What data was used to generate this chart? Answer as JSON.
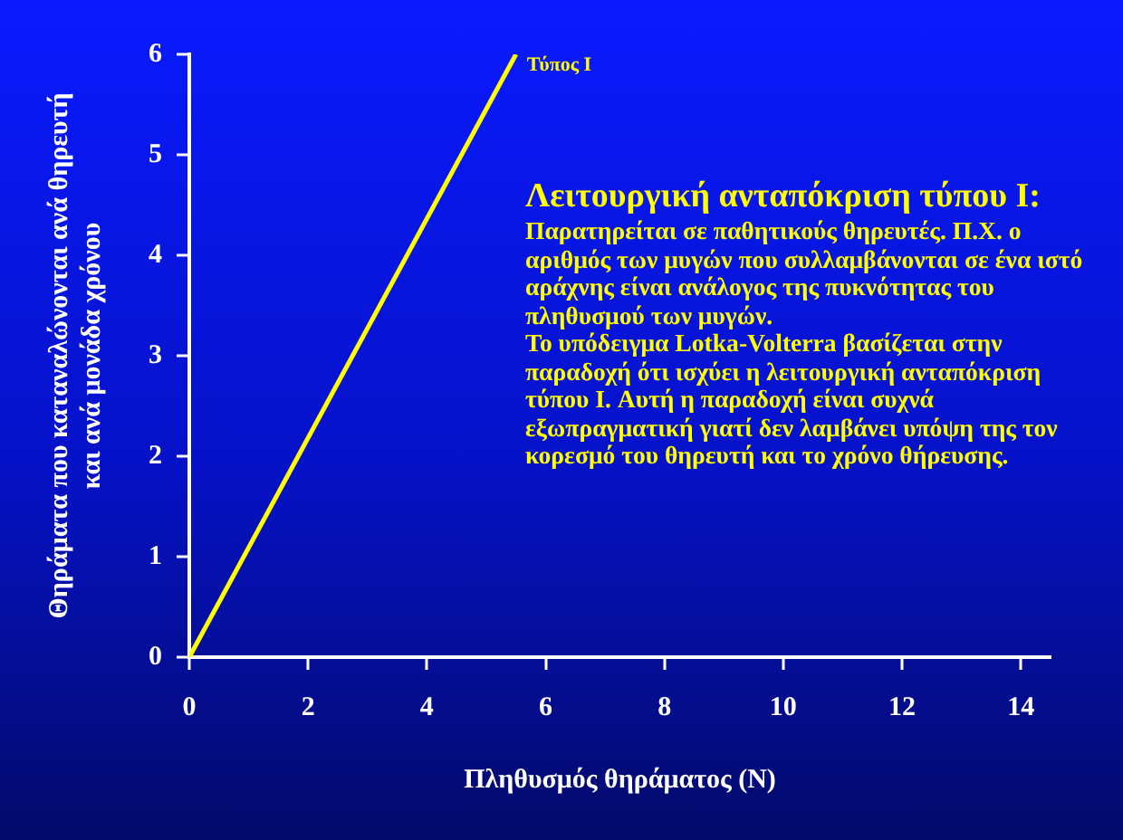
{
  "chart_data": {
    "type": "line",
    "xlabel": "Πληθυσμός θηράματος (N)",
    "ylabel": "Θηράματα που καταναλώνονται ανά θηρευτή\nκαι ανά μονάδα χρόνου",
    "x": [
      0,
      5.5
    ],
    "series": [
      {
        "name": "Τύπος I",
        "color": "#ffff00",
        "values": [
          0,
          6
        ]
      }
    ],
    "xlim": [
      0,
      14.5
    ],
    "xticks": [
      0,
      2,
      4,
      6,
      8,
      10,
      12,
      14
    ],
    "ylim": [
      0,
      6
    ],
    "yticks": [
      0,
      1,
      2,
      3,
      4,
      5,
      6
    ],
    "grid": false,
    "legend": false,
    "marker": "none",
    "line_style": "solid",
    "annotations": [
      "Λειτουργική ανταπόκριση τύπου I:",
      "Παρατηρείται σε παθητικούς θηρευτές. Π.Χ. ο αριθμός των μυγών που συλλαμβάνονται σε ένα ιστό αράχνης είναι ανάλογος της πυκνότητας του πληθυσμού των μυγών.\nΤο υπόδειγμα Lotka-Volterra βασίζεται στην παραδοχή ότι ισχύει η λειτουργική ανταπόκριση τύπου I. Αυτή η παραδοχή είναι συχνά εξωπραγματική γιατί δεν λαμβάνει υπόψη της τον κορεσμό του θηρευτή και το χρόνο θήρευσης."
    ]
  }
}
